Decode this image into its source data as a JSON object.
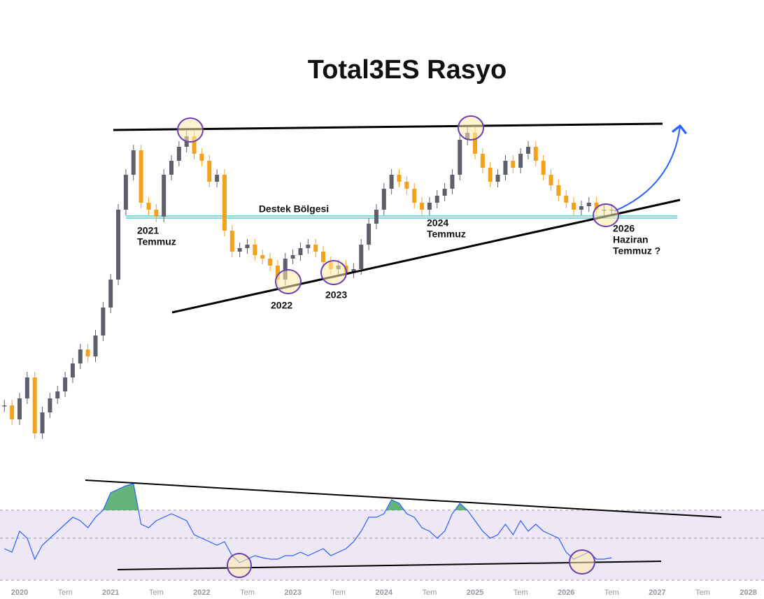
{
  "chart_data": {
    "type": "candlestick",
    "title": "Total3ES Rasyo",
    "values": [
      24,
      20,
      26,
      32,
      16,
      22,
      26,
      28,
      32,
      36,
      40,
      38,
      44,
      52,
      60,
      80,
      90,
      97,
      82,
      80,
      78,
      90,
      94,
      98,
      101,
      96,
      94,
      88,
      90,
      74,
      68,
      69,
      70,
      67,
      66,
      64,
      60,
      66,
      67,
      69,
      70,
      68,
      65,
      63,
      64,
      62,
      63,
      70,
      76,
      80,
      86,
      90,
      88,
      86,
      82,
      80,
      82,
      84,
      86,
      90,
      100,
      102,
      96,
      92,
      88,
      90,
      94,
      92,
      96,
      98,
      94,
      90,
      87,
      84,
      82,
      80,
      81,
      82,
      80,
      80,
      80
    ],
    "up_color": "#5d606b",
    "down_color": "#f5a21b",
    "ylim": [
      0,
      110
    ],
    "xlabels": [
      "2020",
      "Tem",
      "2021",
      "Tem",
      "2022",
      "Tem",
      "2023",
      "Tem",
      "2024",
      "Tem",
      "2025",
      "Tem",
      "2026",
      "Tem",
      "2027",
      "Tem",
      "2028"
    ],
    "annotations": [
      {
        "lines": [
          "Destek Bölgesi"
        ]
      },
      {
        "lines": [
          "2021",
          "Temmuz"
        ]
      },
      {
        "lines": [
          "2022"
        ]
      },
      {
        "lines": [
          "2023"
        ]
      },
      {
        "lines": [
          "2024",
          "Temmuz"
        ]
      },
      {
        "lines": [
          "2026",
          "Haziran",
          "Temmuz ?"
        ]
      }
    ],
    "indicator": {
      "type": "line",
      "color": "#2962ff",
      "values": [
        42.5,
        40,
        55,
        50,
        35,
        45,
        50,
        55,
        60,
        65,
        62.5,
        57.5,
        65,
        70,
        82.5,
        85,
        87.5,
        89,
        60,
        57.5,
        62.5,
        65,
        67.5,
        65,
        62.5,
        52.5,
        50,
        47.5,
        45,
        47.5,
        37.5,
        32.5,
        35,
        37.5,
        36,
        35,
        35,
        37.5,
        37.5,
        40,
        37.5,
        40,
        42.5,
        37.5,
        40,
        42.5,
        47.5,
        55,
        65,
        65,
        67.5,
        77.5,
        75,
        67.5,
        65,
        57.5,
        55,
        50,
        55,
        67.5,
        75,
        70,
        62.5,
        55,
        50,
        52.5,
        60,
        52.5,
        62.5,
        55,
        60,
        55,
        52.5,
        50,
        40,
        35,
        37.5,
        40,
        35,
        35,
        36
      ],
      "ylim": [
        15,
        95
      ],
      "levels": [
        70,
        50,
        20
      ],
      "band_color": "#ede7f6",
      "overbought_color": "#2e9b4e"
    }
  }
}
